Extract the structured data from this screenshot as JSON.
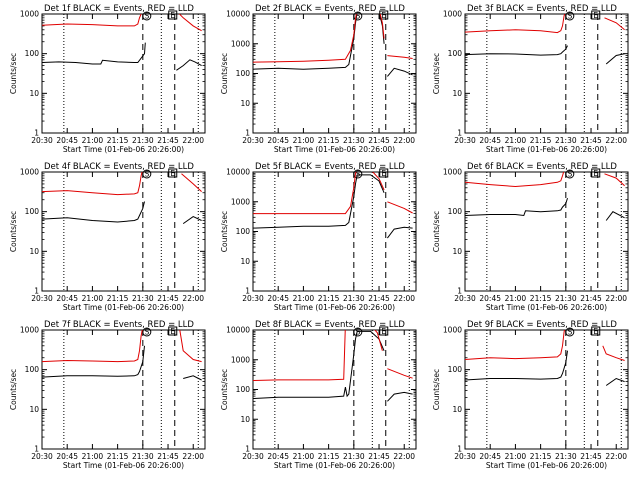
{
  "colors": {
    "events": "#000000",
    "lld": "#e00000",
    "axis": "#000000",
    "background": "#ffffff"
  },
  "chart_data": [
    {
      "type": "line",
      "title": "Det 1f BLACK = Events, RED = LLD",
      "xlabel": "Start Time (01-Feb-06 20:26:00)",
      "ylabel": "Counts/sec",
      "yscale": "log",
      "xlim": [
        "20:30",
        "22:07"
      ],
      "ylim": [
        1,
        1000
      ],
      "x_ticks": [
        "20:30",
        "20:45",
        "21:00",
        "21:15",
        "21:30",
        "21:45",
        "22:00"
      ],
      "y_ticks": [
        "1",
        "10",
        "100",
        "1000"
      ],
      "markers": [
        "S",
        "E"
      ],
      "series": [
        {
          "color": "#000000",
          "x": [
            "20:30",
            "20:40",
            "20:50",
            "21:00",
            "21:05",
            "21:06",
            "21:15",
            "21:25",
            "21:27",
            "21:31",
            "21:31.5",
            "21:33",
            "21:49",
            "21:50",
            "21:54",
            "21:58",
            "22:01",
            "22:05"
          ],
          "values": [
            60,
            62,
            60,
            55,
            55,
            68,
            62,
            60,
            60,
            100,
            190,
            null,
            null,
            38,
            50,
            70,
            62,
            50
          ]
        },
        {
          "color": "#e00000",
          "x": [
            "20:30",
            "20:45",
            "21:00",
            "21:15",
            "21:25",
            "21:27",
            "21:28",
            "21:29",
            "21:30",
            "21:31.5",
            "21:33",
            "21:49",
            "21:50",
            "21:54",
            "22:00",
            "22:05"
          ],
          "values": [
            520,
            560,
            540,
            500,
            500,
            560,
            800,
            1000,
            1200,
            1300,
            null,
            null,
            1200,
            800,
            500,
            380
          ]
        }
      ]
    },
    {
      "type": "line",
      "title": "Det 2f BLACK = Events, RED = LLD",
      "xlabel": "Start Time (01-Feb-06 20:26:00)",
      "ylabel": "Counts/sec",
      "yscale": "log",
      "xlim": [
        "20:30",
        "22:07"
      ],
      "ylim": [
        1,
        10000
      ],
      "x_ticks": [
        "20:30",
        "20:45",
        "21:00",
        "21:15",
        "21:30",
        "21:45",
        "22:00"
      ],
      "y_ticks": [
        "1",
        "10",
        "100",
        "1000",
        "10000"
      ],
      "markers": [
        "S",
        "E"
      ],
      "series": [
        {
          "color": "#000000",
          "x": [
            "20:30",
            "20:45",
            "21:00",
            "21:15",
            "21:25",
            "21:27",
            "21:28",
            "21:30",
            "21:31",
            "21:32",
            "21:45",
            "21:47",
            "21:48",
            "21:49",
            "21:50",
            "21:54",
            "22:00",
            "22:05"
          ],
          "values": [
            140,
            150,
            140,
            150,
            160,
            200,
            400,
            1500,
            5000,
            12000,
            12000,
            4000,
            1000,
            null,
            80,
            150,
            120,
            90
          ]
        },
        {
          "color": "#e00000",
          "x": [
            "20:30",
            "20:45",
            "21:00",
            "21:15",
            "21:25",
            "21:28",
            "21:30",
            "21:31",
            "21:32",
            "21:45",
            "21:47",
            "21:48",
            "21:49",
            "21:50",
            "22:00",
            "22:05"
          ],
          "values": [
            240,
            250,
            260,
            280,
            300,
            600,
            2000,
            7000,
            15000,
            15000,
            5000,
            1500,
            null,
            400,
            350,
            320
          ]
        }
      ]
    },
    {
      "type": "line",
      "title": "Det 3f BLACK = Events, RED = LLD",
      "xlabel": "Start Time (01-Feb-06 20:26:00)",
      "ylabel": "Counts/sec",
      "yscale": "log",
      "xlim": [
        "20:30",
        "22:07"
      ],
      "ylim": [
        1,
        1000
      ],
      "x_ticks": [
        "20:30",
        "20:45",
        "21:00",
        "21:15",
        "21:30",
        "21:45",
        "22:00"
      ],
      "y_ticks": [
        "1",
        "10",
        "100",
        "1000"
      ],
      "markers": [
        "S",
        "E"
      ],
      "series": [
        {
          "color": "#000000",
          "x": [
            "20:30",
            "20:45",
            "21:00",
            "21:15",
            "21:25",
            "21:27",
            "21:28",
            "21:30",
            "21:31",
            "21:32",
            "21:50",
            "21:54",
            "22:00",
            "22:05"
          ],
          "values": [
            95,
            100,
            98,
            92,
            95,
            100,
            110,
            130,
            160,
            null,
            null,
            55,
            90,
            100
          ]
        },
        {
          "color": "#e00000",
          "x": [
            "20:30",
            "20:45",
            "21:00",
            "21:15",
            "21:25",
            "21:27",
            "21:28",
            "21:29",
            "21:30",
            "21:32",
            "21:50",
            "21:53",
            "22:00",
            "22:05"
          ],
          "values": [
            350,
            380,
            400,
            380,
            340,
            380,
            500,
            900,
            1200,
            null,
            null,
            800,
            600,
            400
          ]
        }
      ]
    },
    {
      "type": "line",
      "title": "Det 4f BLACK = Events, RED = LLD",
      "xlabel": "Start Time (01-Feb-06 20:26:00)",
      "ylabel": "Counts/sec",
      "yscale": "log",
      "xlim": [
        "20:30",
        "22:07"
      ],
      "ylim": [
        1,
        1000
      ],
      "x_ticks": [
        "20:30",
        "20:45",
        "21:00",
        "21:15",
        "21:30",
        "21:45",
        "22:00"
      ],
      "y_ticks": [
        "1",
        "10",
        "100",
        "1000"
      ],
      "markers": [
        "S",
        "E"
      ],
      "series": [
        {
          "color": "#000000",
          "x": [
            "20:30",
            "20:45",
            "21:00",
            "21:15",
            "21:25",
            "21:27",
            "21:28",
            "21:30",
            "21:31",
            "21:32",
            "21:50",
            "21:54",
            "22:00",
            "22:05"
          ],
          "values": [
            65,
            70,
            60,
            55,
            60,
            65,
            80,
            120,
            180,
            null,
            null,
            50,
            75,
            60
          ]
        },
        {
          "color": "#e00000",
          "x": [
            "20:30",
            "20:45",
            "21:00",
            "21:15",
            "21:25",
            "21:27",
            "21:28",
            "21:29",
            "21:30",
            "21:32",
            "21:50",
            "21:53",
            "22:00",
            "22:05"
          ],
          "values": [
            320,
            340,
            300,
            270,
            280,
            300,
            450,
            800,
            1200,
            null,
            null,
            900,
            500,
            320
          ]
        }
      ]
    },
    {
      "type": "line",
      "title": "Det 5f BLACK = Events, RED = LLD",
      "xlabel": "Start Time (01-Feb-06 20:26:00)",
      "ylabel": "Counts/sec",
      "yscale": "log",
      "xlim": [
        "20:30",
        "22:07"
      ],
      "ylim": [
        1,
        10000
      ],
      "x_ticks": [
        "20:30",
        "20:45",
        "21:00",
        "21:15",
        "21:30",
        "21:45",
        "22:00"
      ],
      "y_ticks": [
        "1",
        "10",
        "100",
        "1000",
        "10000"
      ],
      "markers": [
        "S",
        "E"
      ],
      "series": [
        {
          "color": "#000000",
          "x": [
            "20:30",
            "20:45",
            "21:00",
            "21:15",
            "21:25",
            "21:27",
            "21:28",
            "21:30",
            "21:31",
            "21:32",
            "21:40",
            "21:45",
            "21:48",
            "21:49",
            "21:50",
            "21:54",
            "22:00",
            "22:05"
          ],
          "values": [
            130,
            140,
            150,
            150,
            160,
            200,
            400,
            1500,
            4000,
            8000,
            8000,
            5000,
            2000,
            null,
            60,
            120,
            140,
            130
          ]
        },
        {
          "color": "#e00000",
          "x": [
            "20:30",
            "20:45",
            "21:00",
            "21:15",
            "21:25",
            "21:28",
            "21:30",
            "21:31",
            "21:32",
            "21:40",
            "21:45",
            "21:48",
            "21:49",
            "21:50",
            "22:00",
            "22:05"
          ],
          "values": [
            400,
            400,
            400,
            400,
            400,
            700,
            3000,
            9000,
            12000,
            12000,
            6000,
            2500,
            null,
            1000,
            600,
            420
          ]
        }
      ]
    },
    {
      "type": "line",
      "title": "Det 6f BLACK = Events, RED = LLD",
      "xlabel": "Start Time (01-Feb-06 20:26:00)",
      "ylabel": "Counts/sec",
      "yscale": "log",
      "xlim": [
        "20:30",
        "22:07"
      ],
      "ylim": [
        1,
        1000
      ],
      "x_ticks": [
        "20:30",
        "20:45",
        "21:00",
        "21:15",
        "21:30",
        "21:45",
        "22:00"
      ],
      "y_ticks": [
        "1",
        "10",
        "100",
        "1000"
      ],
      "markers": [
        "S",
        "E"
      ],
      "series": [
        {
          "color": "#000000",
          "x": [
            "20:30",
            "20:45",
            "21:00",
            "21:05",
            "21:06",
            "21:15",
            "21:25",
            "21:27",
            "21:28",
            "21:30",
            "21:31",
            "21:32",
            "21:50",
            "21:54",
            "21:58",
            "22:05"
          ],
          "values": [
            80,
            85,
            85,
            80,
            105,
            100,
            105,
            110,
            130,
            160,
            220,
            null,
            null,
            60,
            100,
            70
          ]
        },
        {
          "color": "#e00000",
          "x": [
            "20:30",
            "20:45",
            "21:00",
            "21:15",
            "21:25",
            "21:27",
            "21:28",
            "21:29",
            "21:30",
            "21:32",
            "21:50",
            "21:53",
            "22:00",
            "22:05"
          ],
          "values": [
            550,
            480,
            430,
            480,
            550,
            600,
            800,
            1100,
            1300,
            null,
            null,
            900,
            700,
            450
          ]
        }
      ]
    },
    {
      "type": "line",
      "title": "Det 7f BLACK = Events, RED = LLD",
      "xlabel": "Start Time (01-Feb-06 20:26:00)",
      "ylabel": "Counts/sec",
      "yscale": "log",
      "xlim": [
        "20:30",
        "22:07"
      ],
      "ylim": [
        1,
        1000
      ],
      "x_ticks": [
        "20:30",
        "20:45",
        "21:00",
        "21:15",
        "21:30",
        "21:45",
        "22:00"
      ],
      "y_ticks": [
        "1",
        "10",
        "100",
        "1000"
      ],
      "markers": [
        "S",
        "E"
      ],
      "series": [
        {
          "color": "#000000",
          "x": [
            "20:30",
            "20:45",
            "21:00",
            "21:15",
            "21:25",
            "21:27",
            "21:28",
            "21:30",
            "21:31",
            "21:32",
            "21:50",
            "21:54",
            "22:00",
            "22:05"
          ],
          "values": [
            65,
            70,
            70,
            68,
            70,
            75,
            90,
            160,
            400,
            null,
            null,
            60,
            70,
            55
          ]
        },
        {
          "color": "#e00000",
          "x": [
            "20:30",
            "20:45",
            "21:00",
            "21:15",
            "21:25",
            "21:27",
            "21:28",
            "21:29",
            "21:30",
            "21:32",
            "21:50",
            "21:52",
            "21:54",
            "22:00",
            "22:05"
          ],
          "values": [
            160,
            170,
            165,
            160,
            165,
            180,
            300,
            700,
            1200,
            null,
            null,
            1000,
            300,
            180,
            160
          ]
        }
      ]
    },
    {
      "type": "line",
      "title": "Det 8f BLACK = Events, RED = LLD",
      "xlabel": "Start Time (01-Feb-06 20:26:00)",
      "ylabel": "Counts/sec",
      "yscale": "log",
      "xlim": [
        "20:30",
        "22:07"
      ],
      "ylim": [
        1,
        10000
      ],
      "x_ticks": [
        "20:30",
        "20:45",
        "21:00",
        "21:15",
        "21:30",
        "21:45",
        "22:00"
      ],
      "y_ticks": [
        "1",
        "10",
        "100",
        "1000",
        "10000"
      ],
      "markers": [
        "S",
        "E"
      ],
      "series": [
        {
          "color": "#000000",
          "x": [
            "20:30",
            "20:45",
            "21:00",
            "21:15",
            "21:24",
            "21:25",
            "21:26",
            "21:27",
            "21:28",
            "21:30",
            "21:31",
            "21:32",
            "21:40",
            "21:45",
            "21:48",
            "21:49",
            "21:50",
            "21:54",
            "22:00",
            "22:05"
          ],
          "values": [
            50,
            55,
            55,
            55,
            60,
            120,
            60,
            70,
            200,
            1500,
            5000,
            9000,
            9000,
            5000,
            2000,
            null,
            40,
            70,
            80,
            70
          ]
        },
        {
          "color": "#e00000",
          "x": [
            "20:30",
            "20:45",
            "21:00",
            "21:15",
            "21:24",
            "21:25",
            "21:26",
            "21:28",
            "21:30",
            "21:31",
            "21:32",
            "21:40",
            "21:44",
            "21:47",
            "21:49",
            "21:50",
            "22:00",
            "22:05"
          ],
          "values": [
            200,
            210,
            210,
            210,
            220,
            15000,
            15000,
            15000,
            15000,
            15000,
            15000,
            15000,
            8000,
            2000,
            null,
            500,
            300,
            240
          ]
        }
      ]
    },
    {
      "type": "line",
      "title": "Det 9f BLACK = Events, RED = LLD",
      "xlabel": "Start Time (01-Feb-06 20:26:00)",
      "ylabel": "Counts/sec",
      "yscale": "log",
      "xlim": [
        "20:30",
        "22:07"
      ],
      "ylim": [
        1,
        1000
      ],
      "x_ticks": [
        "20:30",
        "20:45",
        "21:00",
        "21:15",
        "21:30",
        "21:45",
        "22:00"
      ],
      "y_ticks": [
        "1",
        "10",
        "100",
        "1000"
      ],
      "markers": [
        "S",
        "E"
      ],
      "series": [
        {
          "color": "#000000",
          "x": [
            "20:30",
            "20:45",
            "21:00",
            "21:15",
            "21:25",
            "21:27",
            "21:28",
            "21:30",
            "21:31",
            "21:32",
            "21:50",
            "21:54",
            "22:00",
            "22:05"
          ],
          "values": [
            55,
            60,
            60,
            58,
            60,
            65,
            80,
            150,
            300,
            null,
            null,
            40,
            60,
            50
          ]
        },
        {
          "color": "#e00000",
          "x": [
            "20:30",
            "20:45",
            "21:00",
            "21:15",
            "21:25",
            "21:27",
            "21:28",
            "21:29",
            "21:30",
            "21:32",
            "21:50",
            "21:52",
            "21:54",
            "22:00",
            "22:05"
          ],
          "values": [
            180,
            200,
            190,
            200,
            210,
            250,
            400,
            900,
            1300,
            null,
            null,
            400,
            250,
            200,
            170
          ]
        }
      ]
    }
  ]
}
